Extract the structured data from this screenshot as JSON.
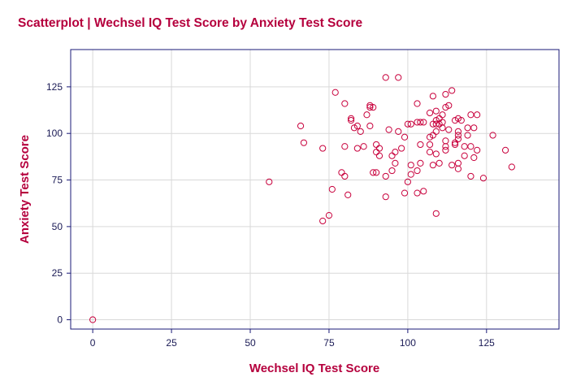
{
  "chart_data": {
    "type": "scatter",
    "title": "Scatterplot | Wechsel IQ Test Score by Anxiety Test Score",
    "xlabel": "Wechsel IQ Test Score",
    "ylabel": "Anxiety Test Score",
    "xlim": [
      -7,
      148
    ],
    "ylim": [
      -5,
      145
    ],
    "xticks": [
      0,
      25,
      50,
      75,
      100,
      125
    ],
    "yticks": [
      0,
      25,
      50,
      75,
      100,
      125
    ],
    "grid": true,
    "colors": {
      "marker": "#c8003c",
      "title": "#b5003d",
      "axis": "#1a1a77",
      "grid": "#d9d9d9"
    },
    "points": [
      [
        0,
        0
      ],
      [
        56,
        74
      ],
      [
        66,
        104
      ],
      [
        67,
        95
      ],
      [
        73,
        92
      ],
      [
        73,
        53
      ],
      [
        75,
        56
      ],
      [
        76,
        70
      ],
      [
        77,
        122
      ],
      [
        79,
        79
      ],
      [
        80,
        116
      ],
      [
        80,
        77
      ],
      [
        80,
        93
      ],
      [
        81,
        67
      ],
      [
        82,
        108
      ],
      [
        82,
        107
      ],
      [
        83,
        103
      ],
      [
        84,
        104
      ],
      [
        84,
        92
      ],
      [
        85,
        101
      ],
      [
        86,
        93
      ],
      [
        87,
        110
      ],
      [
        88,
        115
      ],
      [
        88,
        114
      ],
      [
        88,
        104
      ],
      [
        89,
        114
      ],
      [
        89,
        79
      ],
      [
        90,
        79
      ],
      [
        90,
        94
      ],
      [
        90,
        90
      ],
      [
        91,
        92
      ],
      [
        91,
        88
      ],
      [
        93,
        130
      ],
      [
        93,
        77
      ],
      [
        93,
        66
      ],
      [
        94,
        102
      ],
      [
        95,
        80
      ],
      [
        95,
        88
      ],
      [
        96,
        84
      ],
      [
        96,
        90
      ],
      [
        97,
        130
      ],
      [
        97,
        101
      ],
      [
        98,
        92
      ],
      [
        99,
        98
      ],
      [
        99,
        68
      ],
      [
        100,
        105
      ],
      [
        100,
        74
      ],
      [
        101,
        83
      ],
      [
        101,
        78
      ],
      [
        101,
        105
      ],
      [
        103,
        116
      ],
      [
        103,
        106
      ],
      [
        103,
        68
      ],
      [
        103,
        80
      ],
      [
        104,
        94
      ],
      [
        104,
        84
      ],
      [
        104,
        106
      ],
      [
        105,
        106
      ],
      [
        105,
        69
      ],
      [
        107,
        111
      ],
      [
        107,
        98
      ],
      [
        107,
        94
      ],
      [
        107,
        90
      ],
      [
        108,
        105
      ],
      [
        108,
        99
      ],
      [
        108,
        120
      ],
      [
        108,
        83
      ],
      [
        109,
        112
      ],
      [
        109,
        107
      ],
      [
        109,
        105
      ],
      [
        109,
        101
      ],
      [
        109,
        89
      ],
      [
        109,
        57
      ],
      [
        110,
        108
      ],
      [
        110,
        105
      ],
      [
        110,
        84
      ],
      [
        111,
        110
      ],
      [
        111,
        106
      ],
      [
        111,
        103
      ],
      [
        112,
        121
      ],
      [
        112,
        114
      ],
      [
        112,
        96
      ],
      [
        112,
        93
      ],
      [
        112,
        91
      ],
      [
        113,
        115
      ],
      [
        113,
        102
      ],
      [
        114,
        123
      ],
      [
        114,
        83
      ],
      [
        115,
        107
      ],
      [
        115,
        94
      ],
      [
        115,
        95
      ],
      [
        116,
        108
      ],
      [
        116,
        101
      ],
      [
        116,
        99
      ],
      [
        116,
        97
      ],
      [
        116,
        84
      ],
      [
        116,
        81
      ],
      [
        117,
        107
      ],
      [
        118,
        93
      ],
      [
        118,
        88
      ],
      [
        119,
        103
      ],
      [
        119,
        99
      ],
      [
        120,
        110
      ],
      [
        120,
        93
      ],
      [
        120,
        77
      ],
      [
        121,
        103
      ],
      [
        121,
        87
      ],
      [
        122,
        110
      ],
      [
        122,
        91
      ],
      [
        124,
        76
      ],
      [
        127,
        99
      ],
      [
        131,
        91
      ],
      [
        133,
        82
      ]
    ]
  }
}
